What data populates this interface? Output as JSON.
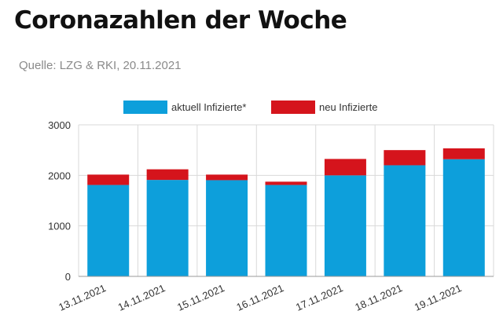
{
  "header": {
    "title": "Coronazahlen der Woche",
    "source": "Quelle: LZG & RKI, 20.11.2021"
  },
  "colors": {
    "current": "#0d9fdb",
    "new": "#d5141c",
    "grid": "#d9d9d9",
    "axis": "#999999"
  },
  "chart_data": {
    "type": "bar",
    "stacked": true,
    "categories": [
      "13.11.2021",
      "14.11.2021",
      "15.11.2021",
      "16.11.2021",
      "17.11.2021",
      "18.11.2021",
      "19.11.2021"
    ],
    "series": [
      {
        "name": "aktuell Infizierte*",
        "color": "#0d9fdb",
        "values": [
          1810,
          1910,
          1905,
          1810,
          2000,
          2200,
          2320
        ]
      },
      {
        "name": "neu Infizierte",
        "color": "#d5141c",
        "values": [
          205,
          210,
          110,
          65,
          325,
          300,
          215
        ]
      }
    ],
    "ylim": [
      0,
      3000
    ],
    "yticks": [
      "0",
      "1000",
      "2000",
      "3000"
    ],
    "grid": true,
    "legend_position": "top"
  }
}
